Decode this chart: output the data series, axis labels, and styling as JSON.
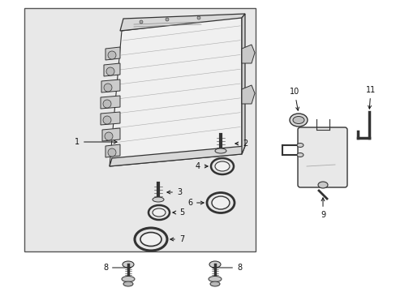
{
  "bg_color": "#ffffff",
  "box_fill": "#e8e8e8",
  "lc": "#333333",
  "figsize": [
    4.89,
    3.6
  ],
  "dpi": 100
}
